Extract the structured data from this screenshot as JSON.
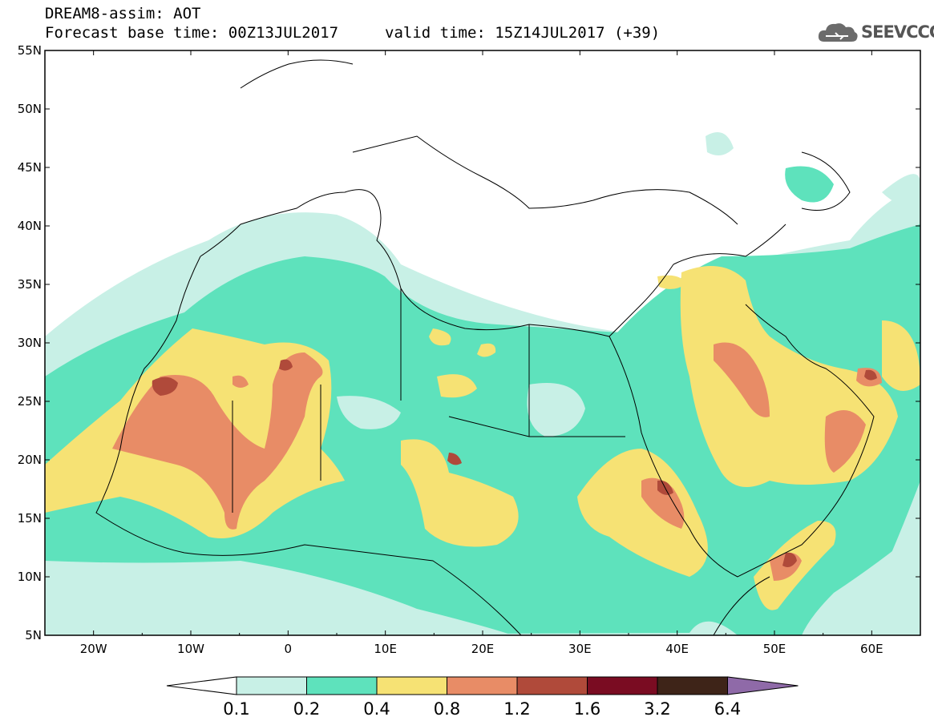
{
  "header": {
    "title": "DREAM8-assim: AOT",
    "base_time": "Forecast base time: 00Z13JUL2017",
    "valid_time": "valid time: 15Z14JUL2017 (+39)"
  },
  "logo": {
    "text": "SEEVCCC",
    "icon": "cloud-icon"
  },
  "map": {
    "lat_ticks": [
      "55N",
      "50N",
      "45N",
      "40N",
      "35N",
      "30N",
      "25N",
      "20N",
      "15N",
      "10N",
      "5N"
    ],
    "lon_ticks": [
      "20W",
      "10W",
      "0",
      "10E",
      "20E",
      "30E",
      "40E",
      "50E",
      "60E"
    ],
    "lon_range": [
      -25,
      65
    ],
    "lat_range": [
      5,
      55
    ]
  },
  "colorbar": {
    "labels": [
      "0.1",
      "0.2",
      "0.4",
      "0.8",
      "1.2",
      "1.6",
      "3.2",
      "6.4"
    ],
    "colors": [
      "#ffffff",
      "#c8f0e6",
      "#5ee2bc",
      "#f6e274",
      "#e88c66",
      "#b04a3a",
      "#7a0c22",
      "#3e2418",
      "#8f6aa8"
    ]
  }
}
